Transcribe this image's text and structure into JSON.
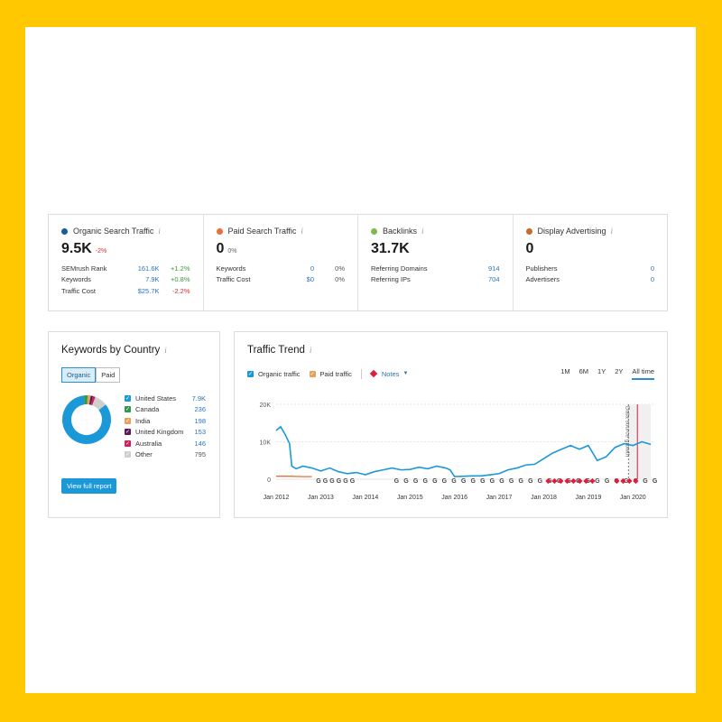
{
  "colors": {
    "organic": "#1b98d8",
    "paid": "#e8703a",
    "backlinks": "#7bbb4c",
    "display": "#c86a2a",
    "notes": "#e01e3c"
  },
  "overview": [
    {
      "title": "Organic Search Traffic",
      "value": "9.5K",
      "delta": "-2%",
      "rows": [
        {
          "label": "SEMrush Rank",
          "value": "161.6K",
          "change": "+1.2%"
        },
        {
          "label": "Keywords",
          "value": "7.9K",
          "change": "+0.8%"
        },
        {
          "label": "Traffic Cost",
          "value": "$25.7K",
          "change": "-2.2%"
        }
      ]
    },
    {
      "title": "Paid Search Traffic",
      "value": "0",
      "delta": "0%",
      "rows": [
        {
          "label": "Keywords",
          "value": "0",
          "change": "0%"
        },
        {
          "label": "Traffic Cost",
          "value": "$0",
          "change": "0%"
        }
      ]
    },
    {
      "title": "Backlinks",
      "value": "31.7K",
      "rows": [
        {
          "label": "Referring Domains",
          "value": "914"
        },
        {
          "label": "Referring IPs",
          "value": "704"
        }
      ]
    },
    {
      "title": "Display Advertising",
      "value": "0",
      "rows": [
        {
          "label": "Publishers",
          "value": "0"
        },
        {
          "label": "Advertisers",
          "value": "0"
        }
      ]
    }
  ],
  "keywords_by_country": {
    "title": "Keywords by Country",
    "tabs": [
      "Organic",
      "Paid"
    ],
    "countries": [
      {
        "name": "United States",
        "value": "7.9K",
        "color": "#1b98d8"
      },
      {
        "name": "Canada",
        "value": "236",
        "color": "#2e9a4a"
      },
      {
        "name": "India",
        "value": "198",
        "color": "#e8a05a"
      },
      {
        "name": "United Kingdom",
        "value": "153",
        "color": "#5a1a5a"
      },
      {
        "name": "Australia",
        "value": "146",
        "color": "#d01f5a"
      },
      {
        "name": "Other",
        "value": "795",
        "color": "#cfcfcf"
      }
    ],
    "button": "View full report"
  },
  "traffic_trend": {
    "title": "Traffic Trend",
    "legend": {
      "organic": "Organic traffic",
      "paid": "Paid traffic",
      "notes": "Notes"
    },
    "ranges": [
      "1M",
      "6M",
      "1Y",
      "2Y",
      "All time"
    ],
    "annotation": "Data source growth",
    "axis_markers": {
      "google_left": [
        "G",
        "G",
        "G",
        "G",
        "G",
        "G"
      ],
      "google_mid": [
        "G",
        "G",
        "G",
        "G",
        "G",
        "G",
        "G",
        "G",
        "G",
        "G",
        "G",
        "G",
        "G",
        "G",
        "G",
        "G",
        "G",
        "G",
        "G",
        "G",
        "G",
        "G",
        "G",
        "G",
        "G",
        "G",
        "G",
        "G"
      ]
    }
  },
  "chart_data": {
    "type": "line",
    "title": "Traffic Trend",
    "xlabels": [
      "Jan 2012",
      "Jan 2013",
      "Jan 2014",
      "Jan 2015",
      "Jan 2016",
      "Jan 2017",
      "Jan 2018",
      "Jan 2019",
      "Jan 2020"
    ],
    "y_ticks": [
      "20K",
      "10K",
      "0"
    ],
    "ylim": [
      0,
      20000
    ],
    "xlim": [
      2012,
      2020.5
    ],
    "series": [
      {
        "name": "Organic traffic",
        "x": [
          2012.0,
          2012.1,
          2012.2,
          2012.3,
          2012.35,
          2012.45,
          2012.6,
          2012.8,
          2013.0,
          2013.2,
          2013.4,
          2013.6,
          2013.8,
          2014.0,
          2014.2,
          2014.4,
          2014.6,
          2014.8,
          2015.0,
          2015.2,
          2015.4,
          2015.6,
          2015.8,
          2015.9,
          2016.0,
          2016.2,
          2016.4,
          2016.6,
          2016.8,
          2017.0,
          2017.2,
          2017.4,
          2017.6,
          2017.8,
          2018.0,
          2018.2,
          2018.4,
          2018.6,
          2018.8,
          2019.0,
          2019.2,
          2019.4,
          2019.6,
          2019.8,
          2020.0,
          2020.2,
          2020.4
        ],
        "y": [
          13000,
          14000,
          12000,
          9500,
          3500,
          2800,
          3500,
          3000,
          2200,
          3000,
          2000,
          1500,
          1800,
          1200,
          2000,
          2500,
          3000,
          2500,
          2600,
          3200,
          2800,
          3500,
          3000,
          2500,
          700,
          800,
          900,
          900,
          1200,
          1500,
          2500,
          3000,
          3800,
          4000,
          5500,
          7000,
          8000,
          9000,
          8000,
          9000,
          5000,
          6000,
          8500,
          9500,
          9000,
          10000,
          9300
        ]
      },
      {
        "name": "Paid traffic",
        "x": [
          2012.0,
          2012.3,
          2012.6,
          2012.8
        ],
        "y": [
          800,
          800,
          700,
          700
        ]
      }
    ]
  }
}
